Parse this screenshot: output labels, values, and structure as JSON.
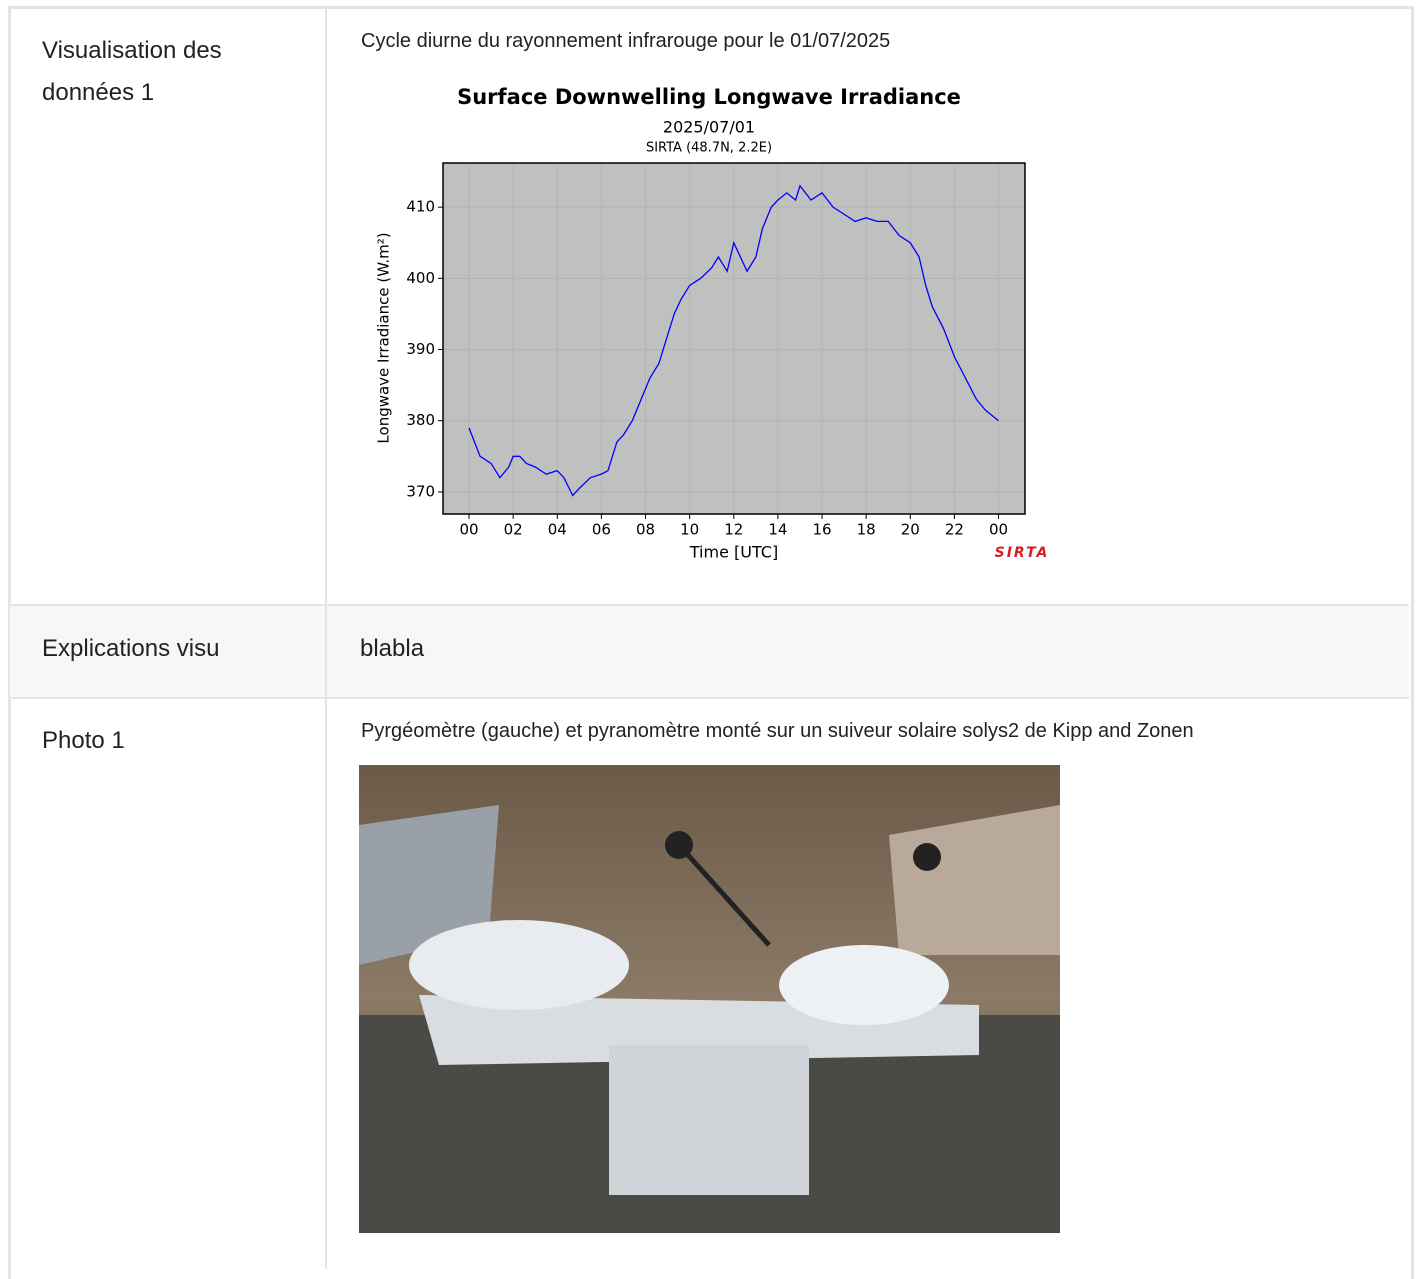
{
  "table": {
    "rows": [
      {
        "label": "Visualisation des données 1",
        "caption": "Cycle diurne du rayonnement infrarouge pour le 01/07/2025",
        "chart": {
          "type": "line",
          "title": "Surface Downwelling Longwave Irradiance",
          "subtitle": "2025/07/01",
          "station": "SIRTA (48.7N, 2.2E)",
          "x_label": "Time [UTC]",
          "y_label": "Longwave Irradiance (W.m²)",
          "logo": "SIRTA",
          "color": "#0000ff",
          "background": "#c0c0c0",
          "grid": true,
          "x": [
            0,
            0.25,
            0.5,
            1,
            1.4,
            1.8,
            2,
            2.3,
            2.6,
            3,
            3.5,
            4,
            4.3,
            4.7,
            5,
            5.5,
            6,
            6.3,
            6.7,
            7,
            7.4,
            7.8,
            8.2,
            8.6,
            9,
            9.3,
            9.6,
            10,
            10.5,
            11,
            11.3,
            11.7,
            12,
            12.3,
            12.6,
            13,
            13.3,
            13.7,
            14,
            14.4,
            14.8,
            15,
            15.5,
            16,
            16.5,
            17,
            17.5,
            18,
            18.5,
            19,
            19.5,
            20,
            20.4,
            20.7,
            21,
            21.5,
            22,
            22.5,
            23,
            23.4,
            24
          ],
          "values": [
            379,
            377,
            375,
            374,
            372,
            373.5,
            375,
            375,
            374,
            373.5,
            372.5,
            373,
            372,
            369.5,
            370.5,
            372,
            372.5,
            373,
            377,
            378,
            380,
            383,
            386,
            388,
            392,
            395,
            397,
            399,
            400,
            401.5,
            403,
            401,
            405,
            403,
            401,
            403,
            407,
            410,
            411,
            412,
            411,
            413,
            411,
            412,
            410,
            409,
            408,
            408.5,
            408,
            408,
            406,
            405,
            403,
            399,
            396,
            393,
            389,
            386,
            383,
            381.5,
            380
          ],
          "xlim": [
            -1.18,
            25.2
          ],
          "ylim": [
            366.9,
            416.2
          ],
          "xticks": [
            {
              "value": 0,
              "label": "00"
            },
            {
              "value": 2,
              "label": "02"
            },
            {
              "value": 4,
              "label": "04"
            },
            {
              "value": 6,
              "label": "06"
            },
            {
              "value": 8,
              "label": "08"
            },
            10,
            12,
            14,
            16,
            18,
            20,
            22,
            {
              "value": 24,
              "label": "00"
            }
          ],
          "yticks": [
            370,
            380,
            390,
            400,
            410
          ]
        }
      },
      {
        "label": "Explications visu",
        "text": "blabla"
      },
      {
        "label": "Photo 1",
        "caption": "Pyrgéomètre (gauche) et pyranomètre monté sur un suiveur solaire solys2 de Kipp and Zonen"
      }
    ]
  }
}
